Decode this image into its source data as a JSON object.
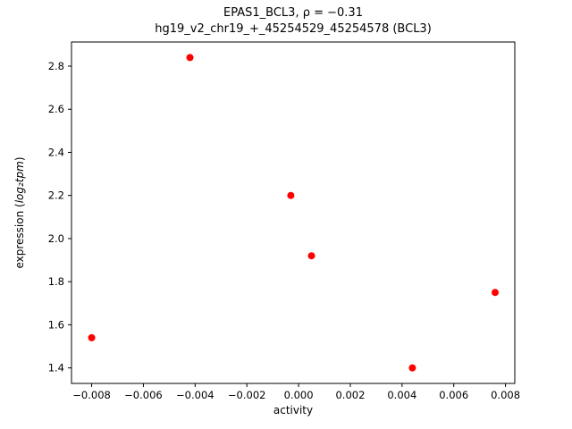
{
  "chart_data": {
    "type": "scatter",
    "title": "EPAS1_BCL3, ρ = −0.31",
    "subtitle": "hg19_v2_chr19_+_45254529_45254578 (BCL3)",
    "xlabel": "activity",
    "ylabel_parts": {
      "prefix": "expression (",
      "math": "log₂tpm",
      "suffix": ")"
    },
    "points": [
      [
        -0.008,
        1.54
      ],
      [
        -0.0042,
        2.84
      ],
      [
        -0.0003,
        2.2
      ],
      [
        0.0005,
        1.92
      ],
      [
        0.0044,
        1.4
      ],
      [
        0.0076,
        1.75
      ]
    ],
    "marker_color": "#ff0000",
    "axis_color": "#000000",
    "xlim": [
      -0.00878,
      0.00836
    ],
    "ylim": [
      1.328,
      2.912
    ],
    "xticks": [
      -0.008,
      -0.006,
      -0.004,
      -0.002,
      0.0,
      0.002,
      0.004,
      0.006,
      0.008
    ],
    "yticks": [
      1.4,
      1.6,
      1.8,
      2.0,
      2.2,
      2.4,
      2.6,
      2.8
    ],
    "x_tick_decimals": 3,
    "y_tick_decimals": 1,
    "grid": false,
    "legend": null,
    "marker_radius": 4
  }
}
